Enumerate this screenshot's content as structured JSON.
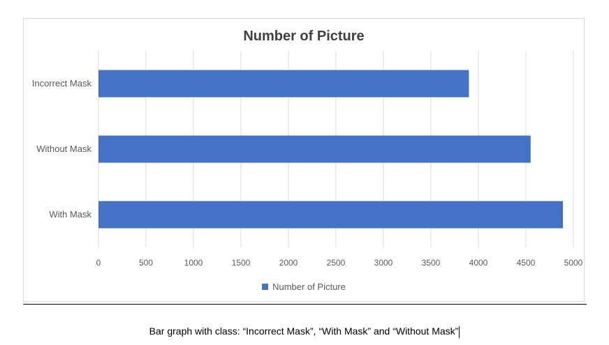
{
  "chart_data": {
    "type": "bar",
    "orientation": "horizontal",
    "title": "Number of Picture",
    "categories": [
      "Incorrect Mask",
      "Without Mask",
      "With Mask"
    ],
    "series": [
      {
        "name": "Number of Picture",
        "values": [
          3900,
          4550,
          4890
        ],
        "color": "#4472c4"
      }
    ],
    "xlim": [
      0,
      5000
    ],
    "xticks": [
      0,
      500,
      1000,
      1500,
      2000,
      2500,
      3000,
      3500,
      4000,
      4500,
      5000
    ],
    "grid": true,
    "legend_position": "bottom"
  },
  "caption": "Bar graph with class: “Incorrect Mask”, “With Mask” and “Without Mask”"
}
